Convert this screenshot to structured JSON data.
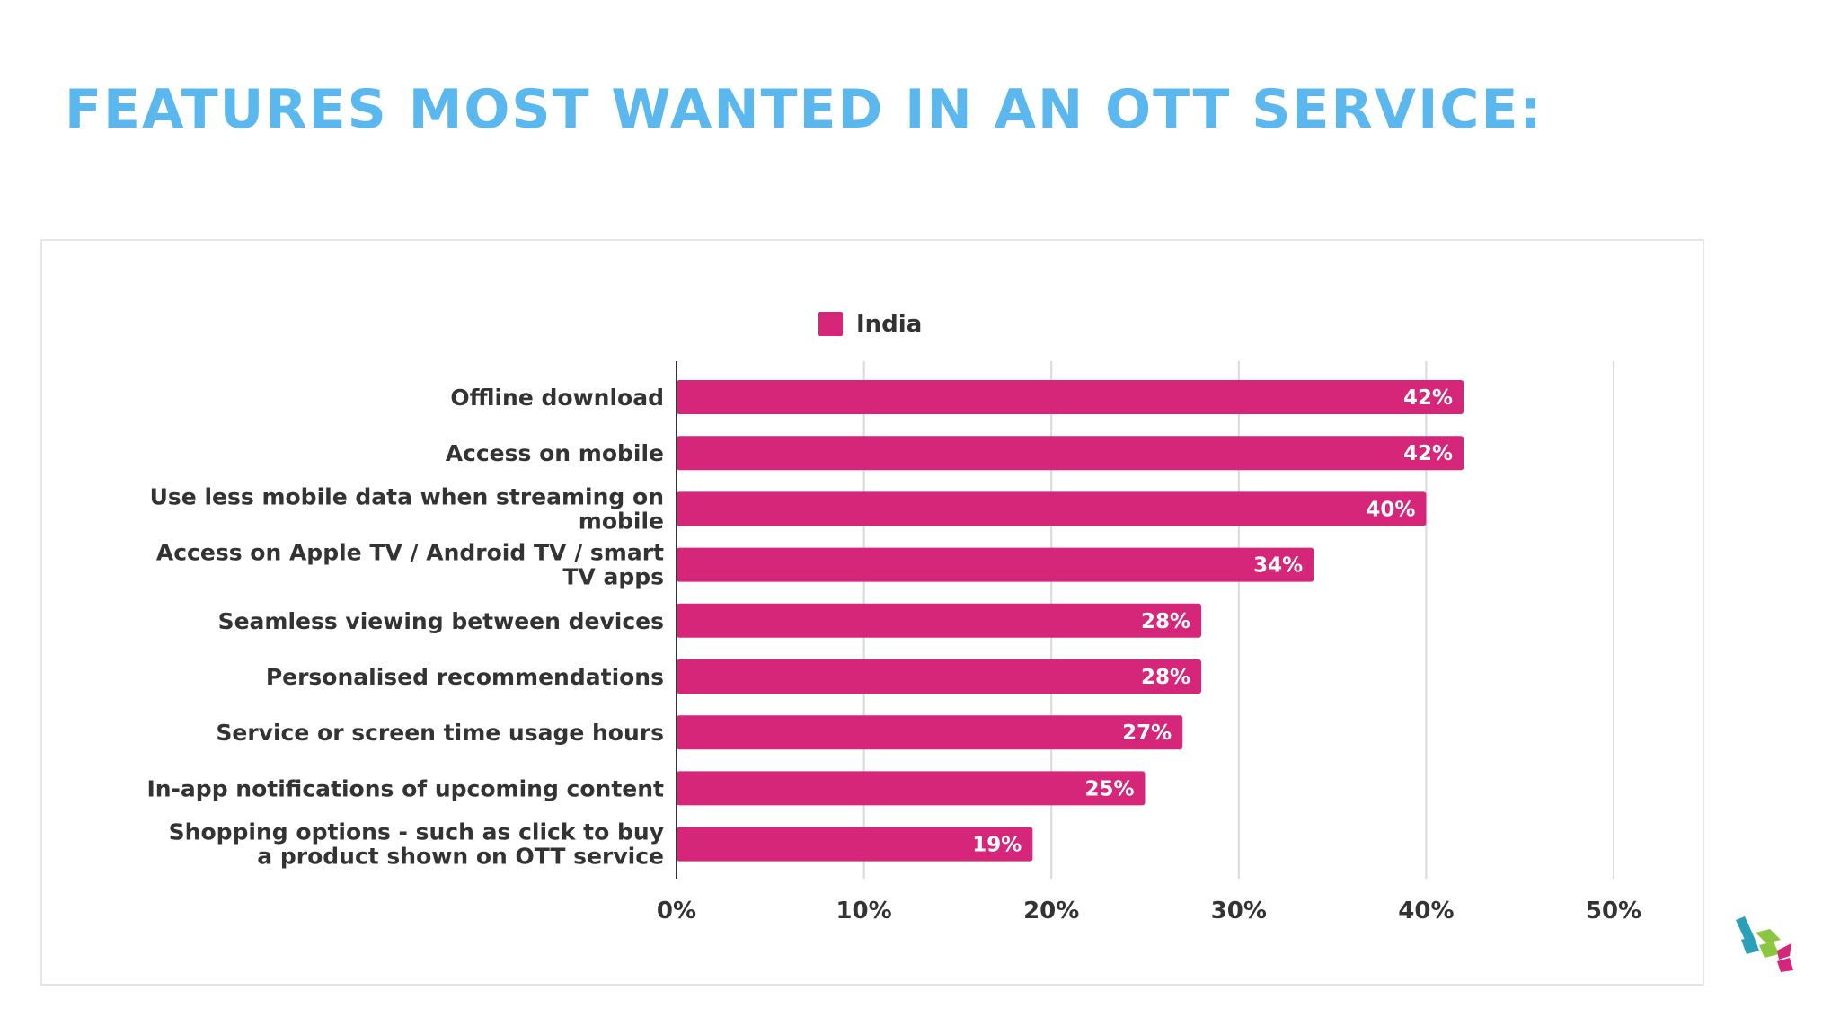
{
  "slide": {
    "title": "FEATURES MOST WANTED IN AN OTT SERVICE:",
    "title_color": "#5bb8ee"
  },
  "chart_data": {
    "type": "bar",
    "orientation": "horizontal",
    "categories": [
      "Offline download",
      "Access on mobile",
      "Use less mobile data when streaming on mobile",
      "Access on Apple TV / Android TV / smart TV apps",
      "Seamless viewing between devices",
      "Personalised recommendations",
      "Service or screen time usage hours",
      "In-app notifications of upcoming content",
      "Shopping options - such as click to buy a product shown on OTT service"
    ],
    "category_lines": [
      [
        "Offline download"
      ],
      [
        "Access on mobile"
      ],
      [
        "Use less mobile data when streaming on",
        "mobile"
      ],
      [
        "Access on Apple TV / Android TV / smart",
        "TV apps"
      ],
      [
        "Seamless viewing between devices"
      ],
      [
        "Personalised recommendations"
      ],
      [
        "Service or screen time usage hours"
      ],
      [
        "In-app notifications of upcoming content"
      ],
      [
        "Shopping options - such as click to buy",
        "a product shown on OTT service"
      ]
    ],
    "series": [
      {
        "name": "India",
        "values": [
          42,
          42,
          40,
          34,
          28,
          28,
          27,
          25,
          19
        ],
        "data_labels": [
          "42%",
          "42%",
          "40%",
          "34%",
          "28%",
          "28%",
          "27%",
          "25%",
          "19%"
        ],
        "color": "#d6267a"
      }
    ],
    "xlim": [
      0,
      50
    ],
    "xticks": [
      0,
      10,
      20,
      30,
      40,
      50
    ],
    "xtick_labels": [
      "0%",
      "10%",
      "20%",
      "30%",
      "40%",
      "50%"
    ],
    "grid": true,
    "legend_position": "top",
    "title": "",
    "xlabel": "",
    "ylabel": ""
  },
  "logo": {
    "colors": [
      "#2a9fb8",
      "#8cc63f",
      "#d6267a"
    ]
  }
}
